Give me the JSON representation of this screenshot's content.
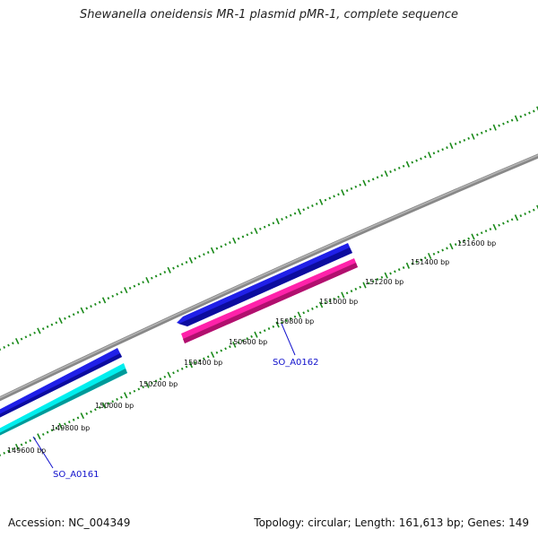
{
  "title": "Shewanella oneidensis MR-1 plasmid pMR-1, complete sequence",
  "footer": {
    "accession": "Accession: NC_004349",
    "summary": "Topology: circular; Length: 161,613 bp; Genes: 149"
  },
  "tick_labels": [
    "149600 bp",
    "149800 bp",
    "150000 bp",
    "150200 bp",
    "150400 bp",
    "150600 bp",
    "150800 bp",
    "151000 bp",
    "151200 bp",
    "151400 bp",
    "151600 bp"
  ],
  "genes": [
    {
      "name": "SO_A0161"
    },
    {
      "name": "SO_A0162"
    }
  ],
  "colors": {
    "backbone": "#7a7a7a",
    "forward_gene": "#1616dd",
    "reverse_gene_a": "#00eeee",
    "reverse_gene_b": "#ee1199",
    "tick": "#1a8a1a",
    "gene_label": "#1010cc"
  }
}
